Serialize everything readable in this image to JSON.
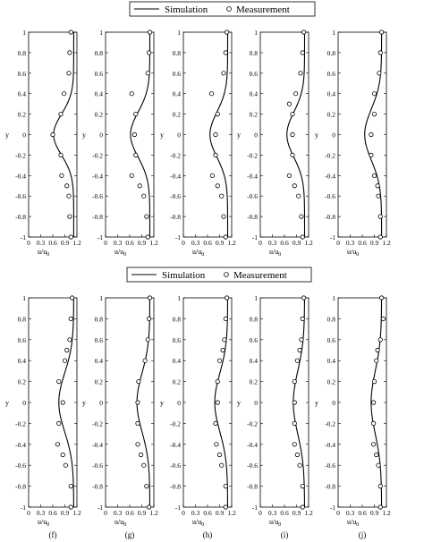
{
  "legend": {
    "simulation_label": "Simulation",
    "measurement_label": "Measurement"
  },
  "axes": {
    "ylabel": "y",
    "xlabel_main": "u/u",
    "xlabel_sub": "0",
    "ylim": [
      -1,
      1
    ],
    "xlim": [
      0,
      1.2
    ],
    "yticks": [
      "1",
      "0.8",
      "0.6",
      "0.4",
      "0.2",
      "0",
      "-0.2",
      "-0.4",
      "-0.6",
      "-0.8",
      "-1"
    ],
    "xticks": [
      "0",
      "0.3",
      "0.6",
      "0.9",
      "1.2"
    ],
    "ytick_values": [
      1,
      0.8,
      0.6,
      0.4,
      0.2,
      0,
      -0.2,
      -0.4,
      -0.6,
      -0.8,
      -1
    ],
    "xtick_values": [
      0,
      0.3,
      0.6,
      0.9,
      1.2
    ]
  },
  "colors": {
    "line": "#000000",
    "background": "#ffffff"
  },
  "chart_data": [
    {
      "type": "line",
      "caption": "",
      "series": [
        {
          "kind": "line",
          "min_u": 0.62,
          "max_u": 1.12,
          "width": 0.2
        },
        {
          "kind": "scatter",
          "points": [
            [
              1.05,
              1
            ],
            [
              1.02,
              0.8
            ],
            [
              1.0,
              0.6
            ],
            [
              0.88,
              0.4
            ],
            [
              0.8,
              0.2
            ],
            [
              0.6,
              0
            ],
            [
              0.8,
              -0.2
            ],
            [
              0.82,
              -0.4
            ],
            [
              0.95,
              -0.5
            ],
            [
              1.0,
              -0.6
            ],
            [
              1.02,
              -0.8
            ],
            [
              1.05,
              -1
            ]
          ]
        }
      ]
    },
    {
      "type": "line",
      "caption": "",
      "series": [
        {
          "kind": "line",
          "min_u": 0.62,
          "max_u": 1.1,
          "width": 0.22
        },
        {
          "kind": "scatter",
          "points": [
            [
              1.1,
              1
            ],
            [
              1.08,
              0.8
            ],
            [
              1.05,
              0.6
            ],
            [
              0.65,
              0.4
            ],
            [
              0.75,
              0.2
            ],
            [
              0.72,
              0
            ],
            [
              0.75,
              -0.2
            ],
            [
              0.65,
              -0.4
            ],
            [
              0.85,
              -0.5
            ],
            [
              0.95,
              -0.6
            ],
            [
              1.02,
              -0.8
            ],
            [
              1.05,
              -1
            ]
          ]
        }
      ]
    },
    {
      "type": "line",
      "caption": "",
      "series": [
        {
          "kind": "line",
          "min_u": 0.66,
          "max_u": 1.1,
          "width": 0.22
        },
        {
          "kind": "scatter",
          "points": [
            [
              1.08,
              1
            ],
            [
              1.05,
              0.8
            ],
            [
              1.0,
              0.6
            ],
            [
              0.7,
              0.4
            ],
            [
              0.85,
              0.2
            ],
            [
              0.8,
              0
            ],
            [
              0.8,
              -0.2
            ],
            [
              0.72,
              -0.4
            ],
            [
              0.85,
              -0.5
            ],
            [
              0.95,
              -0.6
            ],
            [
              1.0,
              -0.8
            ],
            [
              1.05,
              -1
            ]
          ]
        }
      ]
    },
    {
      "type": "line",
      "caption": "",
      "series": [
        {
          "kind": "line",
          "min_u": 0.66,
          "max_u": 1.1,
          "width": 0.22
        },
        {
          "kind": "scatter",
          "points": [
            [
              1.08,
              1
            ],
            [
              1.05,
              0.8
            ],
            [
              1.0,
              0.6
            ],
            [
              0.88,
              0.4
            ],
            [
              0.72,
              0.3
            ],
            [
              0.8,
              0.2
            ],
            [
              0.8,
              0
            ],
            [
              0.8,
              -0.2
            ],
            [
              0.72,
              -0.4
            ],
            [
              0.85,
              -0.5
            ],
            [
              0.95,
              -0.6
            ],
            [
              1.02,
              -0.8
            ],
            [
              1.05,
              -1
            ]
          ]
        }
      ]
    },
    {
      "type": "line",
      "caption": "",
      "series": [
        {
          "kind": "line",
          "min_u": 0.66,
          "max_u": 1.08,
          "width": 0.25
        },
        {
          "kind": "scatter",
          "points": [
            [
              1.08,
              1
            ],
            [
              1.05,
              0.8
            ],
            [
              1.02,
              0.6
            ],
            [
              0.9,
              0.4
            ],
            [
              0.9,
              0.2
            ],
            [
              0.82,
              0
            ],
            [
              0.82,
              -0.2
            ],
            [
              0.9,
              -0.4
            ],
            [
              0.98,
              -0.5
            ],
            [
              1.0,
              -0.6
            ],
            [
              1.05,
              -0.8
            ],
            [
              1.05,
              -1
            ]
          ]
        }
      ]
    },
    {
      "type": "line",
      "caption": "(f)",
      "series": [
        {
          "kind": "line",
          "min_u": 0.75,
          "max_u": 1.12,
          "width": 0.28
        },
        {
          "kind": "scatter",
          "points": [
            [
              1.08,
              1
            ],
            [
              1.05,
              0.8
            ],
            [
              1.02,
              0.6
            ],
            [
              0.95,
              0.5
            ],
            [
              0.9,
              0.4
            ],
            [
              0.75,
              0.2
            ],
            [
              0.85,
              0
            ],
            [
              0.75,
              -0.2
            ],
            [
              0.72,
              -0.4
            ],
            [
              0.85,
              -0.5
            ],
            [
              0.92,
              -0.6
            ],
            [
              1.05,
              -0.8
            ],
            [
              1.05,
              -1
            ]
          ]
        }
      ]
    },
    {
      "type": "line",
      "caption": "(g)",
      "series": [
        {
          "kind": "line",
          "min_u": 0.78,
          "max_u": 1.1,
          "width": 0.28
        },
        {
          "kind": "scatter",
          "points": [
            [
              1.1,
              1
            ],
            [
              1.08,
              0.8
            ],
            [
              1.05,
              0.6
            ],
            [
              0.98,
              0.4
            ],
            [
              0.82,
              0.2
            ],
            [
              0.8,
              0
            ],
            [
              0.8,
              -0.2
            ],
            [
              0.8,
              -0.4
            ],
            [
              0.88,
              -0.5
            ],
            [
              0.95,
              -0.6
            ],
            [
              1.02,
              -0.8
            ],
            [
              1.08,
              -1
            ]
          ]
        }
      ]
    },
    {
      "type": "line",
      "caption": "(h)",
      "series": [
        {
          "kind": "line",
          "min_u": 0.78,
          "max_u": 1.1,
          "width": 0.28
        },
        {
          "kind": "scatter",
          "points": [
            [
              1.08,
              1
            ],
            [
              1.05,
              0.8
            ],
            [
              1.02,
              0.6
            ],
            [
              0.98,
              0.5
            ],
            [
              0.9,
              0.4
            ],
            [
              0.85,
              0.2
            ],
            [
              0.85,
              0
            ],
            [
              0.8,
              -0.2
            ],
            [
              0.82,
              -0.4
            ],
            [
              0.9,
              -0.5
            ],
            [
              0.95,
              -0.6
            ],
            [
              1.05,
              -0.8
            ],
            [
              1.05,
              -1
            ]
          ]
        }
      ]
    },
    {
      "type": "line",
      "caption": "(i)",
      "series": [
        {
          "kind": "line",
          "min_u": 0.82,
          "max_u": 1.1,
          "width": 0.3
        },
        {
          "kind": "scatter",
          "points": [
            [
              1.08,
              1
            ],
            [
              1.05,
              0.8
            ],
            [
              1.02,
              0.6
            ],
            [
              0.98,
              0.5
            ],
            [
              0.92,
              0.4
            ],
            [
              0.85,
              0.2
            ],
            [
              0.85,
              0
            ],
            [
              0.85,
              -0.2
            ],
            [
              0.85,
              -0.4
            ],
            [
              0.92,
              -0.5
            ],
            [
              0.98,
              -0.6
            ],
            [
              1.05,
              -0.8
            ],
            [
              1.05,
              -1
            ]
          ]
        }
      ]
    },
    {
      "type": "line",
      "caption": "(j)",
      "series": [
        {
          "kind": "line",
          "min_u": 0.82,
          "max_u": 1.08,
          "width": 0.3
        },
        {
          "kind": "scatter",
          "points": [
            [
              1.08,
              1
            ],
            [
              1.12,
              0.8
            ],
            [
              1.05,
              0.6
            ],
            [
              0.98,
              0.5
            ],
            [
              0.95,
              0.4
            ],
            [
              0.9,
              0.2
            ],
            [
              0.88,
              0
            ],
            [
              0.88,
              -0.2
            ],
            [
              0.88,
              -0.4
            ],
            [
              0.95,
              -0.5
            ],
            [
              1.0,
              -0.6
            ],
            [
              1.05,
              -0.8
            ],
            [
              1.05,
              -1
            ]
          ]
        }
      ]
    }
  ]
}
